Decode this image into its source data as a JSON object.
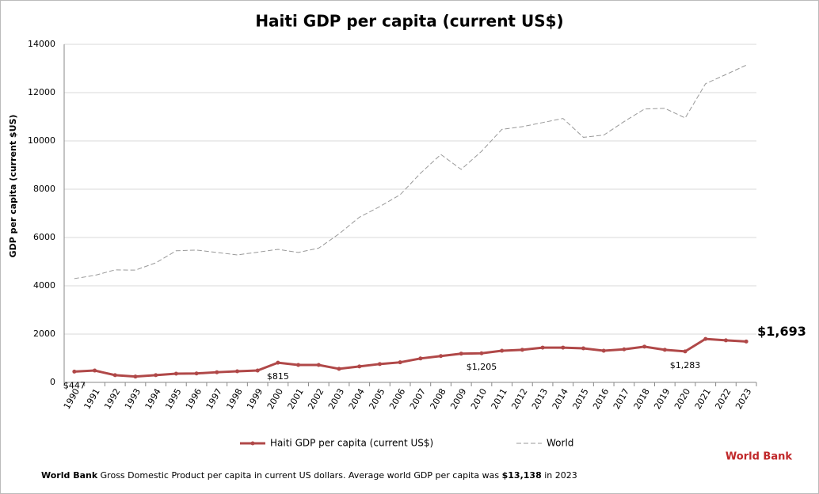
{
  "chart_data": {
    "type": "line",
    "title": "Haiti GDP per capita (current US$)",
    "y_label": "GDP per capita (current $US)",
    "categories": [
      "1990",
      "1991",
      "1992",
      "1993",
      "1994",
      "1995",
      "1996",
      "1997",
      "1998",
      "1999",
      "2000",
      "2001",
      "2002",
      "2003",
      "2004",
      "2005",
      "2006",
      "2007",
      "2008",
      "2009",
      "2010",
      "2011",
      "2012",
      "2013",
      "2014",
      "2015",
      "2016",
      "2017",
      "2018",
      "2019",
      "2020",
      "2021",
      "2022",
      "2023"
    ],
    "series": [
      {
        "name": "Haiti GDP per capita (current US$)",
        "color": "#b04848",
        "style": "solid",
        "markers": true,
        "values": [
          447,
          490,
          300,
          240,
          300,
          360,
          370,
          420,
          460,
          490,
          815,
          720,
          720,
          560,
          660,
          760,
          830,
          990,
          1090,
          1190,
          1205,
          1310,
          1350,
          1440,
          1440,
          1410,
          1310,
          1370,
          1480,
          1350,
          1283,
          1800,
          1740,
          1693
        ],
        "value_labels": [
          "$447",
          null,
          null,
          null,
          null,
          null,
          null,
          null,
          null,
          null,
          "$815",
          null,
          null,
          null,
          null,
          null,
          null,
          null,
          null,
          null,
          "$1,205",
          null,
          null,
          null,
          null,
          null,
          null,
          null,
          null,
          null,
          "$1,283",
          null,
          null,
          "$1,693"
        ]
      },
      {
        "name": "World",
        "color": "#999999",
        "style": "dashed",
        "markers": false,
        "values": [
          4300,
          4430,
          4660,
          4650,
          4950,
          5450,
          5480,
          5380,
          5280,
          5390,
          5510,
          5380,
          5560,
          6150,
          6840,
          7280,
          7770,
          8660,
          9440,
          8820,
          9570,
          10480,
          10590,
          10760,
          10930,
          10150,
          10240,
          10800,
          11320,
          11350,
          10950,
          12370,
          12750,
          13138
        ]
      }
    ],
    "ylim": [
      0,
      14000
    ],
    "yticks": [
      0,
      2000,
      4000,
      6000,
      8000,
      10000,
      12000,
      14000
    ],
    "grid": true,
    "legend": "bottom",
    "brand": "World Bank",
    "footnote": {
      "source": "World Bank",
      "text": "Gross Domestic Product per capita in current US dollars.  Average world GDP per capita was",
      "highlight": "$13,138",
      "tail": "in 2023"
    }
  }
}
